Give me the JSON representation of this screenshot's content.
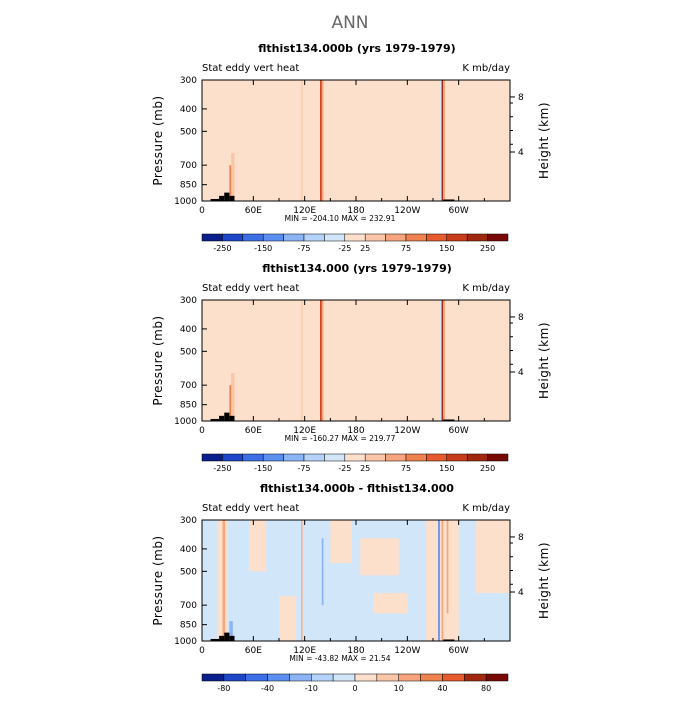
{
  "figure_title": "ANN",
  "colors": {
    "background": "#ffffff",
    "title_gray": "#666666",
    "light_blue": "#d2e6fa",
    "light_peach": "#fde0cc",
    "land_mask": "#000000"
  },
  "chart_data": [
    {
      "type": "heatmap",
      "title": "flthist134.000b (yrs 1979-1979)",
      "field_label": "Stat eddy vert heat",
      "units": "K mb/day",
      "ylabel": "Pressure (mb)",
      "y2label": "Height (km)",
      "x_ticks": [
        "0",
        "60E",
        "120E",
        "180",
        "120W",
        "60W"
      ],
      "y_ticks": [
        "300",
        "400",
        "500",
        "700",
        "850",
        "1000"
      ],
      "y2_ticks": [
        "8",
        "4"
      ],
      "minmax": "MIN = -204.10   MAX = 232.91",
      "colorbar_labels": [
        "-250",
        "-150",
        "-75",
        "-25",
        "25",
        "75",
        "150",
        "250"
      ],
      "colorbar_colors": [
        "#0a1e8c",
        "#1e46c8",
        "#3c6ee6",
        "#5a8ff0",
        "#8cb4f5",
        "#b4d2fa",
        "#d2e6fa",
        "#fde0cc",
        "#fbc6a8",
        "#f7a57d",
        "#f08250",
        "#e65a2d",
        "#c83c19",
        "#a0280f",
        "#780a05"
      ],
      "field": {
        "base_value": 5,
        "regions": [
          {
            "lon": [
              0,
              8
            ],
            "p": [
              300,
              1000
            ],
            "value": -5
          },
          {
            "lon": [
              8,
              28
            ],
            "p": [
              300,
              1000
            ],
            "value": 4
          },
          {
            "lon": [
              28,
              34
            ],
            "p": [
              300,
              600
            ],
            "value": -5
          },
          {
            "lon": [
              40,
              55
            ],
            "p": [
              300,
              1000
            ],
            "value": -8
          },
          {
            "lon": [
              55,
              70
            ],
            "p": [
              600,
              1000
            ],
            "value": -6
          },
          {
            "lon": [
              68,
              90
            ],
            "p": [
              300,
              750
            ],
            "value": -4
          },
          {
            "lon": [
              100,
              130
            ],
            "p": [
              300,
              500
            ],
            "value": -5
          },
          {
            "lon": [
              190,
              260
            ],
            "p": [
              300,
              420
            ],
            "value": -10
          },
          {
            "lon": [
              150,
              340
            ],
            "p": [
              900,
              1000
            ],
            "value": -8
          },
          {
            "lon": [
              292,
              360
            ],
            "p": [
              300,
              560
            ],
            "value": -6
          },
          {
            "lon": [
              248,
              258
            ],
            "p": [
              300,
              1000
            ],
            "value": -8
          },
          {
            "lon": [
              32,
              36
            ],
            "p": [
              700,
              1000
            ],
            "value": 90
          },
          {
            "lon": [
              34,
              38
            ],
            "p": [
              620,
              1000
            ],
            "value": 40
          },
          {
            "lon": [
              116,
              117.5
            ],
            "p": [
              300,
              1000
            ],
            "value": 30
          },
          {
            "lon": [
              138,
              140
            ],
            "p": [
              300,
              1000
            ],
            "value": 170
          },
          {
            "lon": [
              140,
              142
            ],
            "p": [
              300,
              1000
            ],
            "value": 60
          },
          {
            "lon": [
              280,
              282
            ],
            "p": [
              300,
              1000
            ],
            "value": 200
          },
          {
            "lon": [
              282,
              284
            ],
            "p": [
              300,
              1000
            ],
            "value": 60
          },
          {
            "lon": [
              278,
              280
            ],
            "p": [
              300,
              1000
            ],
            "value": -30
          }
        ],
        "land_mask": [
          {
            "lon": [
              10,
              20
            ],
            "p": [
              980,
              1000
            ]
          },
          {
            "lon": [
              20,
              26
            ],
            "p": [
              950,
              1000
            ]
          },
          {
            "lon": [
              26,
              32
            ],
            "p": [
              920,
              1000
            ]
          },
          {
            "lon": [
              32,
              38
            ],
            "p": [
              950,
              1000
            ]
          },
          {
            "lon": [
              282,
              295
            ],
            "p": [
              985,
              1000
            ]
          }
        ]
      }
    },
    {
      "type": "heatmap",
      "title": "flthist134.000 (yrs 1979-1979)",
      "field_label": "Stat eddy vert heat",
      "units": "K mb/day",
      "ylabel": "Pressure (mb)",
      "y2label": "Height (km)",
      "x_ticks": [
        "0",
        "60E",
        "120E",
        "180",
        "120W",
        "60W"
      ],
      "y_ticks": [
        "300",
        "400",
        "500",
        "700",
        "850",
        "1000"
      ],
      "y2_ticks": [
        "8",
        "4"
      ],
      "minmax": "MIN = -160.27   MAX = 219.77",
      "colorbar_labels": [
        "-250",
        "-150",
        "-75",
        "-25",
        "25",
        "75",
        "150",
        "250"
      ],
      "colorbar_colors": [
        "#0a1e8c",
        "#1e46c8",
        "#3c6ee6",
        "#5a8ff0",
        "#8cb4f5",
        "#b4d2fa",
        "#d2e6fa",
        "#fde0cc",
        "#fbc6a8",
        "#f7a57d",
        "#f08250",
        "#e65a2d",
        "#c83c19",
        "#a0280f",
        "#780a05"
      ],
      "field": {
        "base_value": 5,
        "regions": [
          {
            "lon": [
              0,
              8
            ],
            "p": [
              300,
              1000
            ],
            "value": -5
          },
          {
            "lon": [
              8,
              28
            ],
            "p": [
              300,
              1000
            ],
            "value": 4
          },
          {
            "lon": [
              28,
              34
            ],
            "p": [
              300,
              600
            ],
            "value": -5
          },
          {
            "lon": [
              40,
              60
            ],
            "p": [
              300,
              1000
            ],
            "value": -8
          },
          {
            "lon": [
              60,
              100
            ],
            "p": [
              600,
              1000
            ],
            "value": -6
          },
          {
            "lon": [
              60,
              95
            ],
            "p": [
              300,
              480
            ],
            "value": -4
          },
          {
            "lon": [
              100,
              132
            ],
            "p": [
              300,
              500
            ],
            "value": -5
          },
          {
            "lon": [
              196,
              270
            ],
            "p": [
              300,
              400
            ],
            "value": -10
          },
          {
            "lon": [
              150,
              340
            ],
            "p": [
              900,
              1000
            ],
            "value": -8
          },
          {
            "lon": [
              295,
              360
            ],
            "p": [
              300,
              620
            ],
            "value": -6
          },
          {
            "lon": [
              250,
              258
            ],
            "p": [
              300,
              1000
            ],
            "value": -8
          },
          {
            "lon": [
              32,
              36
            ],
            "p": [
              700,
              1000
            ],
            "value": 90
          },
          {
            "lon": [
              34,
              38
            ],
            "p": [
              620,
              1000
            ],
            "value": 40
          },
          {
            "lon": [
              116,
              117.5
            ],
            "p": [
              300,
              1000
            ],
            "value": 30
          },
          {
            "lon": [
              138,
              140
            ],
            "p": [
              300,
              1000
            ],
            "value": 170
          },
          {
            "lon": [
              140,
              142
            ],
            "p": [
              300,
              1000
            ],
            "value": 60
          },
          {
            "lon": [
              280,
              282
            ],
            "p": [
              300,
              1000
            ],
            "value": 200
          },
          {
            "lon": [
              282,
              284
            ],
            "p": [
              300,
              1000
            ],
            "value": 60
          },
          {
            "lon": [
              278,
              280
            ],
            "p": [
              300,
              1000
            ],
            "value": -30
          }
        ],
        "land_mask": [
          {
            "lon": [
              10,
              20
            ],
            "p": [
              980,
              1000
            ]
          },
          {
            "lon": [
              20,
              26
            ],
            "p": [
              950,
              1000
            ]
          },
          {
            "lon": [
              26,
              32
            ],
            "p": [
              920,
              1000
            ]
          },
          {
            "lon": [
              32,
              38
            ],
            "p": [
              950,
              1000
            ]
          },
          {
            "lon": [
              282,
              295
            ],
            "p": [
              985,
              1000
            ]
          }
        ]
      }
    },
    {
      "type": "heatmap",
      "title": "flthist134.000b - flthist134.000",
      "field_label": "Stat eddy vert heat",
      "units": "K mb/day",
      "ylabel": "Pressure (mb)",
      "y2label": "Height (km)",
      "x_ticks": [
        "0",
        "60E",
        "120E",
        "180",
        "120W",
        "60W"
      ],
      "y_ticks": [
        "300",
        "400",
        "500",
        "700",
        "850",
        "1000"
      ],
      "y2_ticks": [
        "8",
        "4"
      ],
      "minmax": "MIN = -43.82   MAX = 21.54",
      "colorbar_labels": [
        "-80",
        "-40",
        "-10",
        "0",
        "10",
        "40",
        "80"
      ],
      "colorbar_colors": [
        "#0a1e8c",
        "#1e46c8",
        "#3c6ee6",
        "#5a8ff0",
        "#8cb4f5",
        "#b4d2fa",
        "#d2e6fa",
        "#fde0cc",
        "#fbc6a8",
        "#f7a57d",
        "#f08250",
        "#e65a2d",
        "#a0280f",
        "#780a05"
      ],
      "field": {
        "base_value": -3,
        "regions": [
          {
            "lon": [
              18,
              30
            ],
            "p": [
              300,
              1000
            ],
            "value": 3
          },
          {
            "lon": [
              55,
              75
            ],
            "p": [
              300,
              500
            ],
            "value": 3
          },
          {
            "lon": [
              90,
              110
            ],
            "p": [
              640,
              1000
            ],
            "value": 3
          },
          {
            "lon": [
              150,
              175
            ],
            "p": [
              300,
              460
            ],
            "value": 3
          },
          {
            "lon": [
              185,
              230
            ],
            "p": [
              360,
              520
            ],
            "value": 3
          },
          {
            "lon": [
              200,
              240
            ],
            "p": [
              620,
              760
            ],
            "value": 3
          },
          {
            "lon": [
              262,
              300
            ],
            "p": [
              300,
              1000
            ],
            "value": 3
          },
          {
            "lon": [
              320,
              360
            ],
            "p": [
              300,
              620
            ],
            "value": 3
          },
          {
            "lon": [
              24,
              27
            ],
            "p": [
              300,
              1000
            ],
            "value": 12
          },
          {
            "lon": [
              116,
              117.5
            ],
            "p": [
              300,
              1000
            ],
            "value": 15
          },
          {
            "lon": [
              140,
              142
            ],
            "p": [
              360,
              700
            ],
            "value": -15
          },
          {
            "lon": [
              276,
              278
            ],
            "p": [
              300,
              1000
            ],
            "value": -40
          },
          {
            "lon": [
              280,
              282
            ],
            "p": [
              300,
              1000
            ],
            "value": 14
          },
          {
            "lon": [
              286,
              288
            ],
            "p": [
              300,
              760
            ],
            "value": 14
          },
          {
            "lon": [
              32,
              36
            ],
            "p": [
              820,
              1000
            ],
            "value": -15
          }
        ],
        "land_mask": [
          {
            "lon": [
              10,
              20
            ],
            "p": [
              980,
              1000
            ]
          },
          {
            "lon": [
              20,
              26
            ],
            "p": [
              950,
              1000
            ]
          },
          {
            "lon": [
              26,
              32
            ],
            "p": [
              920,
              1000
            ]
          },
          {
            "lon": [
              32,
              38
            ],
            "p": [
              950,
              1000
            ]
          },
          {
            "lon": [
              282,
              295
            ],
            "p": [
              985,
              1000
            ]
          }
        ]
      }
    }
  ]
}
